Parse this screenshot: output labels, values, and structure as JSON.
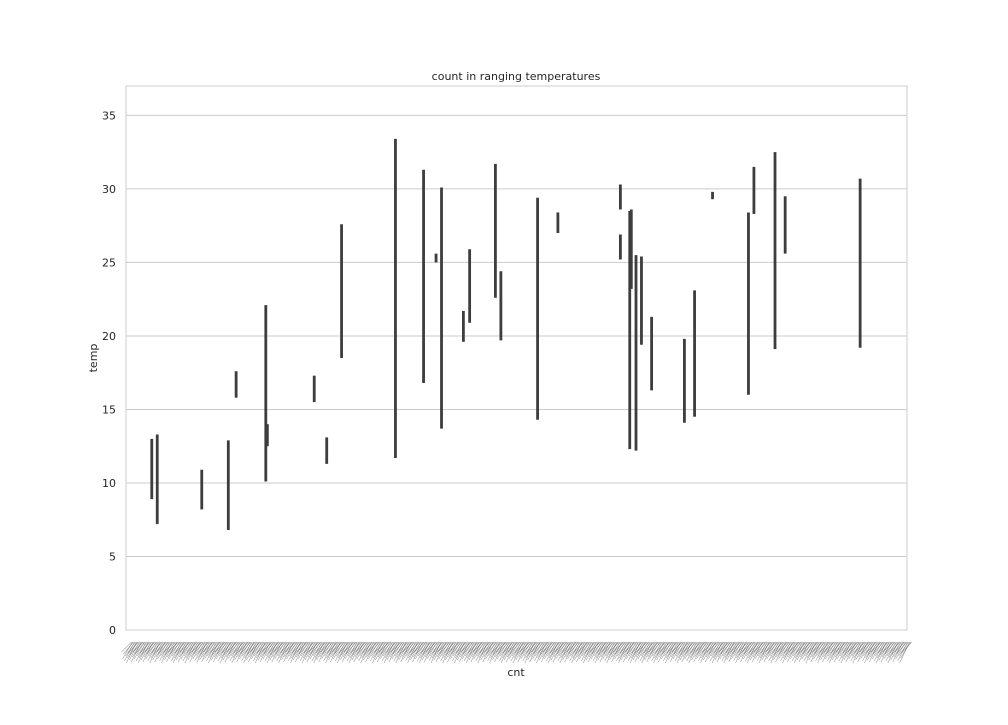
{
  "chart_data": {
    "type": "bar",
    "title": "count in ranging temperatures",
    "xlabel": "cnt",
    "ylabel": "temp",
    "ylim": [
      0,
      37
    ],
    "yticks": [
      0,
      5,
      10,
      15,
      20,
      25,
      30,
      35
    ],
    "grid": true,
    "n_categories": 800,
    "error_bars": [
      {
        "x": 0.033,
        "low": 8.9,
        "high": 13.0
      },
      {
        "x": 0.04,
        "low": 7.2,
        "high": 13.3
      },
      {
        "x": 0.097,
        "low": 8.2,
        "high": 10.9
      },
      {
        "x": 0.131,
        "low": 6.8,
        "high": 12.9
      },
      {
        "x": 0.141,
        "low": 15.8,
        "high": 17.6
      },
      {
        "x": 0.179,
        "low": 10.1,
        "high": 22.1
      },
      {
        "x": 0.181,
        "low": 12.5,
        "high": 14.0
      },
      {
        "x": 0.241,
        "low": 15.5,
        "high": 17.3
      },
      {
        "x": 0.257,
        "low": 11.3,
        "high": 13.1
      },
      {
        "x": 0.276,
        "low": 18.5,
        "high": 27.6
      },
      {
        "x": 0.345,
        "low": 11.7,
        "high": 33.4
      },
      {
        "x": 0.381,
        "low": 16.8,
        "high": 31.3
      },
      {
        "x": 0.397,
        "low": 25.0,
        "high": 25.6
      },
      {
        "x": 0.404,
        "low": 13.7,
        "high": 30.1
      },
      {
        "x": 0.432,
        "low": 19.6,
        "high": 21.7
      },
      {
        "x": 0.44,
        "low": 20.9,
        "high": 25.9
      },
      {
        "x": 0.473,
        "low": 22.6,
        "high": 31.7
      },
      {
        "x": 0.48,
        "low": 19.7,
        "high": 24.4
      },
      {
        "x": 0.527,
        "low": 14.3,
        "high": 29.4
      },
      {
        "x": 0.553,
        "low": 27.0,
        "high": 28.4
      },
      {
        "x": 0.633,
        "low": 28.6,
        "high": 30.3
      },
      {
        "x": 0.633,
        "low": 25.2,
        "high": 26.9
      },
      {
        "x": 0.645,
        "low": 12.3,
        "high": 28.5
      },
      {
        "x": 0.647,
        "low": 23.2,
        "high": 28.6
      },
      {
        "x": 0.653,
        "low": 12.2,
        "high": 25.5
      },
      {
        "x": 0.66,
        "low": 19.4,
        "high": 25.4
      },
      {
        "x": 0.673,
        "low": 16.3,
        "high": 21.3
      },
      {
        "x": 0.715,
        "low": 14.1,
        "high": 19.8
      },
      {
        "x": 0.728,
        "low": 14.5,
        "high": 23.1
      },
      {
        "x": 0.751,
        "low": 29.3,
        "high": 29.8
      },
      {
        "x": 0.797,
        "low": 16.0,
        "high": 28.4
      },
      {
        "x": 0.804,
        "low": 28.3,
        "high": 31.5
      },
      {
        "x": 0.831,
        "low": 19.1,
        "high": 32.5
      },
      {
        "x": 0.844,
        "low": 25.6,
        "high": 29.5
      },
      {
        "x": 0.94,
        "low": 19.2,
        "high": 30.7
      }
    ]
  }
}
